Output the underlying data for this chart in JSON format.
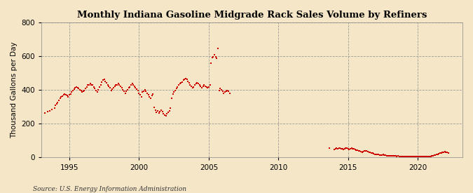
{
  "title": "Monthly Indiana Gasoline Midgrade Rack Sales Volume by Refiners",
  "ylabel": "Thousand Gallons per Day",
  "source": "Source: U.S. Energy Information Administration",
  "background_color": "#f5e6c8",
  "plot_bg_color": "#f5e6c8",
  "point_color": "#cc0000",
  "marker_size": 4,
  "ylim": [
    0,
    800
  ],
  "yticks": [
    0,
    200,
    400,
    600,
    800
  ],
  "xlim_start": 1993.0,
  "xlim_end": 2023.2,
  "xticks": [
    1995,
    2000,
    2005,
    2010,
    2015,
    2020
  ],
  "data": [
    [
      1993.25,
      262
    ],
    [
      1993.42,
      270
    ],
    [
      1993.58,
      278
    ],
    [
      1993.75,
      285
    ],
    [
      1993.92,
      292
    ],
    [
      1994.0,
      310
    ],
    [
      1994.08,
      318
    ],
    [
      1994.17,
      328
    ],
    [
      1994.25,
      340
    ],
    [
      1994.33,
      352
    ],
    [
      1994.42,
      358
    ],
    [
      1994.5,
      362
    ],
    [
      1994.58,
      370
    ],
    [
      1994.67,
      375
    ],
    [
      1994.75,
      370
    ],
    [
      1994.83,
      368
    ],
    [
      1994.92,
      360
    ],
    [
      1995.0,
      370
    ],
    [
      1995.08,
      378
    ],
    [
      1995.17,
      388
    ],
    [
      1995.25,
      398
    ],
    [
      1995.33,
      405
    ],
    [
      1995.42,
      412
    ],
    [
      1995.5,
      418
    ],
    [
      1995.58,
      412
    ],
    [
      1995.67,
      408
    ],
    [
      1995.75,
      402
    ],
    [
      1995.83,
      395
    ],
    [
      1995.92,
      388
    ],
    [
      1996.0,
      392
    ],
    [
      1996.08,
      398
    ],
    [
      1996.17,
      408
    ],
    [
      1996.25,
      418
    ],
    [
      1996.33,
      428
    ],
    [
      1996.42,
      432
    ],
    [
      1996.5,
      438
    ],
    [
      1996.58,
      432
    ],
    [
      1996.67,
      428
    ],
    [
      1996.75,
      418
    ],
    [
      1996.83,
      408
    ],
    [
      1996.92,
      398
    ],
    [
      1997.0,
      390
    ],
    [
      1997.08,
      402
    ],
    [
      1997.17,
      418
    ],
    [
      1997.25,
      432
    ],
    [
      1997.33,
      448
    ],
    [
      1997.42,
      458
    ],
    [
      1997.5,
      462
    ],
    [
      1997.58,
      452
    ],
    [
      1997.67,
      442
    ],
    [
      1997.75,
      432
    ],
    [
      1997.83,
      422
    ],
    [
      1997.92,
      412
    ],
    [
      1998.0,
      395
    ],
    [
      1998.08,
      405
    ],
    [
      1998.17,
      415
    ],
    [
      1998.25,
      422
    ],
    [
      1998.33,
      428
    ],
    [
      1998.42,
      432
    ],
    [
      1998.5,
      438
    ],
    [
      1998.58,
      432
    ],
    [
      1998.67,
      422
    ],
    [
      1998.75,
      412
    ],
    [
      1998.83,
      402
    ],
    [
      1998.92,
      392
    ],
    [
      1999.0,
      382
    ],
    [
      1999.08,
      392
    ],
    [
      1999.17,
      402
    ],
    [
      1999.25,
      412
    ],
    [
      1999.33,
      418
    ],
    [
      1999.42,
      428
    ],
    [
      1999.5,
      438
    ],
    [
      1999.58,
      432
    ],
    [
      1999.67,
      422
    ],
    [
      1999.75,
      412
    ],
    [
      1999.83,
      405
    ],
    [
      1999.92,
      398
    ],
    [
      2000.0,
      382
    ],
    [
      2000.08,
      372
    ],
    [
      2000.17,
      358
    ],
    [
      2000.25,
      388
    ],
    [
      2000.33,
      392
    ],
    [
      2000.42,
      402
    ],
    [
      2000.5,
      392
    ],
    [
      2000.58,
      382
    ],
    [
      2000.67,
      372
    ],
    [
      2000.75,
      358
    ],
    [
      2000.83,
      352
    ],
    [
      2000.92,
      368
    ],
    [
      2001.0,
      378
    ],
    [
      2001.08,
      295
    ],
    [
      2001.17,
      282
    ],
    [
      2001.25,
      268
    ],
    [
      2001.33,
      278
    ],
    [
      2001.42,
      262
    ],
    [
      2001.5,
      272
    ],
    [
      2001.58,
      282
    ],
    [
      2001.67,
      272
    ],
    [
      2001.75,
      258
    ],
    [
      2001.83,
      252
    ],
    [
      2001.92,
      248
    ],
    [
      2002.0,
      258
    ],
    [
      2002.08,
      268
    ],
    [
      2002.17,
      278
    ],
    [
      2002.25,
      292
    ],
    [
      2002.33,
      352
    ],
    [
      2002.42,
      378
    ],
    [
      2002.5,
      388
    ],
    [
      2002.58,
      398
    ],
    [
      2002.67,
      408
    ],
    [
      2002.75,
      418
    ],
    [
      2002.83,
      428
    ],
    [
      2002.92,
      438
    ],
    [
      2003.0,
      442
    ],
    [
      2003.08,
      448
    ],
    [
      2003.17,
      458
    ],
    [
      2003.25,
      462
    ],
    [
      2003.33,
      468
    ],
    [
      2003.42,
      462
    ],
    [
      2003.5,
      452
    ],
    [
      2003.58,
      442
    ],
    [
      2003.67,
      432
    ],
    [
      2003.75,
      422
    ],
    [
      2003.83,
      412
    ],
    [
      2003.92,
      418
    ],
    [
      2004.0,
      428
    ],
    [
      2004.08,
      438
    ],
    [
      2004.17,
      442
    ],
    [
      2004.25,
      438
    ],
    [
      2004.33,
      428
    ],
    [
      2004.42,
      422
    ],
    [
      2004.5,
      412
    ],
    [
      2004.58,
      422
    ],
    [
      2004.67,
      428
    ],
    [
      2004.75,
      422
    ],
    [
      2004.83,
      418
    ],
    [
      2004.92,
      412
    ],
    [
      2005.0,
      418
    ],
    [
      2005.08,
      428
    ],
    [
      2005.17,
      558
    ],
    [
      2005.25,
      592
    ],
    [
      2005.33,
      598
    ],
    [
      2005.42,
      608
    ],
    [
      2005.5,
      598
    ],
    [
      2005.58,
      588
    ],
    [
      2005.67,
      645
    ],
    [
      2005.75,
      398
    ],
    [
      2005.83,
      408
    ],
    [
      2005.92,
      402
    ],
    [
      2006.0,
      392
    ],
    [
      2006.08,
      382
    ],
    [
      2006.17,
      388
    ],
    [
      2006.25,
      392
    ],
    [
      2006.33,
      398
    ],
    [
      2006.42,
      392
    ],
    [
      2006.5,
      382
    ],
    [
      2013.67,
      58
    ],
    [
      2014.0,
      48
    ],
    [
      2014.08,
      52
    ],
    [
      2014.17,
      56
    ],
    [
      2014.25,
      52
    ],
    [
      2014.33,
      58
    ],
    [
      2014.42,
      56
    ],
    [
      2014.5,
      52
    ],
    [
      2014.58,
      50
    ],
    [
      2014.67,
      48
    ],
    [
      2014.75,
      52
    ],
    [
      2014.83,
      58
    ],
    [
      2014.92,
      55
    ],
    [
      2015.0,
      50
    ],
    [
      2015.08,
      48
    ],
    [
      2015.17,
      52
    ],
    [
      2015.25,
      55
    ],
    [
      2015.33,
      52
    ],
    [
      2015.42,
      50
    ],
    [
      2015.5,
      48
    ],
    [
      2015.58,
      45
    ],
    [
      2015.67,
      42
    ],
    [
      2015.75,
      40
    ],
    [
      2015.83,
      38
    ],
    [
      2015.92,
      35
    ],
    [
      2016.0,
      32
    ],
    [
      2016.08,
      35
    ],
    [
      2016.17,
      38
    ],
    [
      2016.25,
      40
    ],
    [
      2016.33,
      38
    ],
    [
      2016.42,
      35
    ],
    [
      2016.5,
      32
    ],
    [
      2016.58,
      30
    ],
    [
      2016.67,
      28
    ],
    [
      2016.75,
      25
    ],
    [
      2016.83,
      22
    ],
    [
      2016.92,
      20
    ],
    [
      2017.0,
      18
    ],
    [
      2017.08,
      20
    ],
    [
      2017.17,
      18
    ],
    [
      2017.25,
      16
    ],
    [
      2017.33,
      14
    ],
    [
      2017.42,
      16
    ],
    [
      2017.5,
      18
    ],
    [
      2017.58,
      16
    ],
    [
      2017.67,
      14
    ],
    [
      2017.75,
      11
    ],
    [
      2017.83,
      9
    ],
    [
      2017.92,
      9
    ],
    [
      2018.0,
      11
    ],
    [
      2018.08,
      9
    ],
    [
      2018.17,
      9
    ],
    [
      2018.25,
      11
    ],
    [
      2018.33,
      9
    ],
    [
      2018.42,
      9
    ],
    [
      2018.5,
      7
    ],
    [
      2018.58,
      9
    ],
    [
      2018.67,
      7
    ],
    [
      2018.75,
      7
    ],
    [
      2018.83,
      7
    ],
    [
      2018.92,
      7
    ],
    [
      2019.0,
      7
    ],
    [
      2019.08,
      7
    ],
    [
      2019.17,
      7
    ],
    [
      2019.25,
      7
    ],
    [
      2019.33,
      7
    ],
    [
      2019.42,
      7
    ],
    [
      2019.5,
      7
    ],
    [
      2019.58,
      7
    ],
    [
      2019.67,
      7
    ],
    [
      2019.75,
      7
    ],
    [
      2019.83,
      7
    ],
    [
      2019.92,
      7
    ],
    [
      2020.0,
      7
    ],
    [
      2020.08,
      7
    ],
    [
      2020.17,
      7
    ],
    [
      2020.25,
      7
    ],
    [
      2020.33,
      7
    ],
    [
      2020.42,
      7
    ],
    [
      2020.5,
      7
    ],
    [
      2020.58,
      7
    ],
    [
      2020.67,
      7
    ],
    [
      2020.75,
      7
    ],
    [
      2020.83,
      7
    ],
    [
      2020.92,
      7
    ],
    [
      2021.0,
      9
    ],
    [
      2021.08,
      11
    ],
    [
      2021.17,
      14
    ],
    [
      2021.25,
      16
    ],
    [
      2021.33,
      18
    ],
    [
      2021.42,
      20
    ],
    [
      2021.5,
      22
    ],
    [
      2021.58,
      25
    ],
    [
      2021.67,
      28
    ],
    [
      2021.75,
      30
    ],
    [
      2021.83,
      32
    ],
    [
      2021.92,
      35
    ],
    [
      2022.0,
      32
    ],
    [
      2022.08,
      30
    ],
    [
      2022.17,
      28
    ]
  ]
}
